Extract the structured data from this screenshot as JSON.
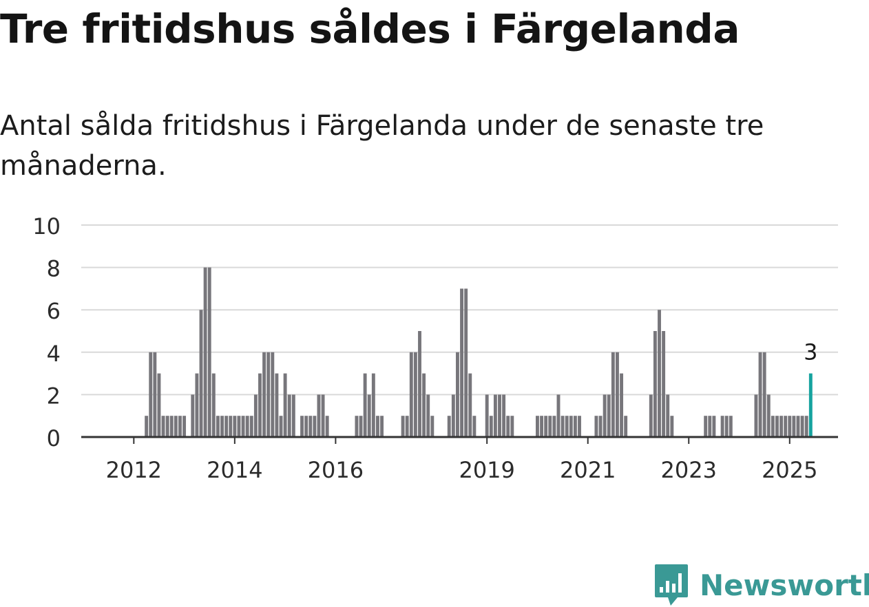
{
  "title": "Tre fritidshus såldes i Färgelanda",
  "subtitle": "Antal sålda fritidshus i Färgelanda under de senaste tre månaderna.",
  "brand": {
    "name": "Newsworthy",
    "icon": "bar-chart-speech-bubble-icon",
    "color": "#3a9995"
  },
  "colors": {
    "bar": "#77767b",
    "highlight": "#16a39f",
    "grid": "#d9d9d9",
    "axis": "#333333"
  },
  "chart_data": {
    "type": "bar",
    "title": "Tre fritidshus såldes i Färgelanda",
    "subtitle": "Antal sålda fritidshus i Färgelanda under de senaste tre månaderna.",
    "xlabel": "",
    "ylabel": "",
    "ylim": [
      0,
      10
    ],
    "yticks": [
      0,
      2,
      4,
      6,
      8,
      10
    ],
    "xticks": [
      {
        "label": "2012",
        "date": "2012-01"
      },
      {
        "label": "2014",
        "date": "2014-01"
      },
      {
        "label": "2016",
        "date": "2016-01"
      },
      {
        "label": "2019",
        "date": "2019-01"
      },
      {
        "label": "2021",
        "date": "2021-01"
      },
      {
        "label": "2023",
        "date": "2023-01"
      },
      {
        "label": "2025",
        "date": "2025-01"
      }
    ],
    "grid": true,
    "x_start": "2011-01",
    "x_end": "2025-12",
    "series": [
      {
        "values": [
          {
            "month": "2012-04",
            "value": 1
          },
          {
            "month": "2012-05",
            "value": 4
          },
          {
            "month": "2012-06",
            "value": 4
          },
          {
            "month": "2012-07",
            "value": 3
          },
          {
            "month": "2012-08",
            "value": 1
          },
          {
            "month": "2012-09",
            "value": 1
          },
          {
            "month": "2012-10",
            "value": 1
          },
          {
            "month": "2012-11",
            "value": 1
          },
          {
            "month": "2012-12",
            "value": 1
          },
          {
            "month": "2013-01",
            "value": 1
          },
          {
            "month": "2013-03",
            "value": 2
          },
          {
            "month": "2013-04",
            "value": 3
          },
          {
            "month": "2013-05",
            "value": 6
          },
          {
            "month": "2013-06",
            "value": 8
          },
          {
            "month": "2013-07",
            "value": 8
          },
          {
            "month": "2013-08",
            "value": 3
          },
          {
            "month": "2013-09",
            "value": 1
          },
          {
            "month": "2013-10",
            "value": 1
          },
          {
            "month": "2013-11",
            "value": 1
          },
          {
            "month": "2013-12",
            "value": 1
          },
          {
            "month": "2014-01",
            "value": 1
          },
          {
            "month": "2014-02",
            "value": 1
          },
          {
            "month": "2014-03",
            "value": 1
          },
          {
            "month": "2014-04",
            "value": 1
          },
          {
            "month": "2014-05",
            "value": 1
          },
          {
            "month": "2014-06",
            "value": 2
          },
          {
            "month": "2014-07",
            "value": 3
          },
          {
            "month": "2014-08",
            "value": 4
          },
          {
            "month": "2014-09",
            "value": 4
          },
          {
            "month": "2014-10",
            "value": 4
          },
          {
            "month": "2014-11",
            "value": 3
          },
          {
            "month": "2014-12",
            "value": 1
          },
          {
            "month": "2015-01",
            "value": 3
          },
          {
            "month": "2015-02",
            "value": 2
          },
          {
            "month": "2015-03",
            "value": 2
          },
          {
            "month": "2015-05",
            "value": 1
          },
          {
            "month": "2015-06",
            "value": 1
          },
          {
            "month": "2015-07",
            "value": 1
          },
          {
            "month": "2015-08",
            "value": 1
          },
          {
            "month": "2015-09",
            "value": 2
          },
          {
            "month": "2015-10",
            "value": 2
          },
          {
            "month": "2015-11",
            "value": 1
          },
          {
            "month": "2016-06",
            "value": 1
          },
          {
            "month": "2016-07",
            "value": 1
          },
          {
            "month": "2016-08",
            "value": 3
          },
          {
            "month": "2016-09",
            "value": 2
          },
          {
            "month": "2016-10",
            "value": 3
          },
          {
            "month": "2016-11",
            "value": 1
          },
          {
            "month": "2016-12",
            "value": 1
          },
          {
            "month": "2017-05",
            "value": 1
          },
          {
            "month": "2017-06",
            "value": 1
          },
          {
            "month": "2017-07",
            "value": 4
          },
          {
            "month": "2017-08",
            "value": 4
          },
          {
            "month": "2017-09",
            "value": 5
          },
          {
            "month": "2017-10",
            "value": 3
          },
          {
            "month": "2017-11",
            "value": 2
          },
          {
            "month": "2017-12",
            "value": 1
          },
          {
            "month": "2018-04",
            "value": 1
          },
          {
            "month": "2018-05",
            "value": 2
          },
          {
            "month": "2018-06",
            "value": 4
          },
          {
            "month": "2018-07",
            "value": 7
          },
          {
            "month": "2018-08",
            "value": 7
          },
          {
            "month": "2018-09",
            "value": 3
          },
          {
            "month": "2018-10",
            "value": 1
          },
          {
            "month": "2019-01",
            "value": 2
          },
          {
            "month": "2019-02",
            "value": 1
          },
          {
            "month": "2019-03",
            "value": 2
          },
          {
            "month": "2019-04",
            "value": 2
          },
          {
            "month": "2019-05",
            "value": 2
          },
          {
            "month": "2019-06",
            "value": 1
          },
          {
            "month": "2019-07",
            "value": 1
          },
          {
            "month": "2020-01",
            "value": 1
          },
          {
            "month": "2020-02",
            "value": 1
          },
          {
            "month": "2020-03",
            "value": 1
          },
          {
            "month": "2020-04",
            "value": 1
          },
          {
            "month": "2020-05",
            "value": 1
          },
          {
            "month": "2020-06",
            "value": 2
          },
          {
            "month": "2020-07",
            "value": 1
          },
          {
            "month": "2020-08",
            "value": 1
          },
          {
            "month": "2020-09",
            "value": 1
          },
          {
            "month": "2020-10",
            "value": 1
          },
          {
            "month": "2020-11",
            "value": 1
          },
          {
            "month": "2021-03",
            "value": 1
          },
          {
            "month": "2021-04",
            "value": 1
          },
          {
            "month": "2021-05",
            "value": 2
          },
          {
            "month": "2021-06",
            "value": 2
          },
          {
            "month": "2021-07",
            "value": 4
          },
          {
            "month": "2021-08",
            "value": 4
          },
          {
            "month": "2021-09",
            "value": 3
          },
          {
            "month": "2021-10",
            "value": 1
          },
          {
            "month": "2022-04",
            "value": 2
          },
          {
            "month": "2022-05",
            "value": 5
          },
          {
            "month": "2022-06",
            "value": 6
          },
          {
            "month": "2022-07",
            "value": 5
          },
          {
            "month": "2022-08",
            "value": 2
          },
          {
            "month": "2022-09",
            "value": 1
          },
          {
            "month": "2023-05",
            "value": 1
          },
          {
            "month": "2023-06",
            "value": 1
          },
          {
            "month": "2023-07",
            "value": 1
          },
          {
            "month": "2023-09",
            "value": 1
          },
          {
            "month": "2023-10",
            "value": 1
          },
          {
            "month": "2023-11",
            "value": 1
          },
          {
            "month": "2024-05",
            "value": 2
          },
          {
            "month": "2024-06",
            "value": 4
          },
          {
            "month": "2024-07",
            "value": 4
          },
          {
            "month": "2024-08",
            "value": 2
          },
          {
            "month": "2024-09",
            "value": 1
          },
          {
            "month": "2024-10",
            "value": 1
          },
          {
            "month": "2024-11",
            "value": 1
          },
          {
            "month": "2024-12",
            "value": 1
          },
          {
            "month": "2025-01",
            "value": 1
          },
          {
            "month": "2025-02",
            "value": 1
          },
          {
            "month": "2025-03",
            "value": 1
          },
          {
            "month": "2025-04",
            "value": 1
          },
          {
            "month": "2025-05",
            "value": 1
          },
          {
            "month": "2025-06",
            "value": 3
          }
        ]
      }
    ],
    "highlight": {
      "month": "2025-06",
      "value": 3,
      "label": "3"
    }
  }
}
